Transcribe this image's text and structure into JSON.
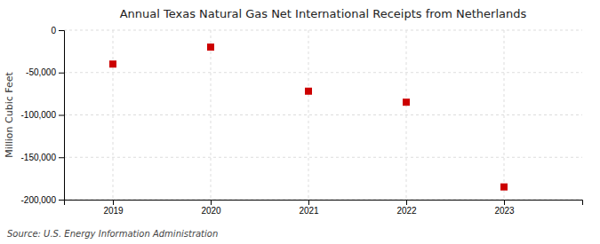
{
  "chart_data": {
    "type": "scatter",
    "title": "Annual Texas Natural Gas Net International Receipts from Netherlands",
    "ylabel": "Million Cubic Feet",
    "source": "Source: U.S. Energy Information Administration",
    "x": [
      2019,
      2020,
      2021,
      2022,
      2023
    ],
    "values": [
      -40000,
      -20000,
      -72000,
      -85000,
      -185000
    ],
    "color": "#cc0000",
    "marker": "square",
    "xlim": [
      2018.5,
      2023.8
    ],
    "xticks": [
      2019,
      2020,
      2021,
      2022,
      2023
    ],
    "ylim": [
      -200000,
      0
    ],
    "yticks": [
      0,
      {
        "value": -50000,
        "label": "-50,000"
      },
      {
        "value": -100000,
        "label": "-100,000"
      },
      {
        "value": -150000,
        "label": "-150,000"
      },
      {
        "value": -200000,
        "label": "-200,000"
      }
    ],
    "grid": true
  }
}
